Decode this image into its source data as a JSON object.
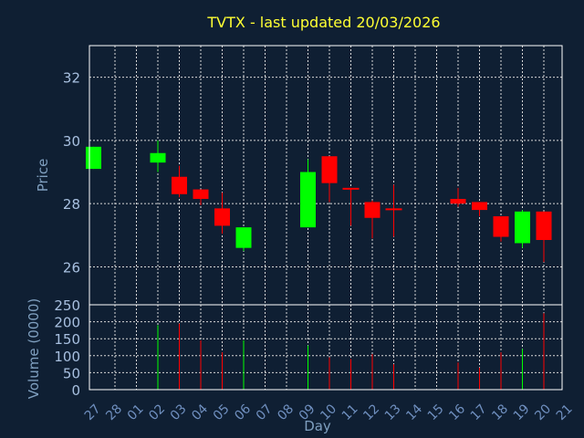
{
  "title": "TVTX - last updated 20/03/2026",
  "colors": {
    "background": "#0f1f33",
    "axis": "#ffffff",
    "grid": "#d8d8d8",
    "up": "#00ff00",
    "down": "#ff0000",
    "title": "#ffff33",
    "label": "#7f9fbf"
  },
  "chart_data": [
    {
      "type": "candlestick",
      "ylabel": "Price",
      "ylim": [
        24.8,
        33
      ],
      "yticks": [
        26,
        28,
        30,
        32
      ],
      "grid": true,
      "categories": [
        "27",
        "28",
        "01",
        "02",
        "03",
        "04",
        "05",
        "06",
        "07",
        "08",
        "09",
        "10",
        "11",
        "12",
        "13",
        "14",
        "15",
        "16",
        "17",
        "18",
        "19",
        "20",
        "21"
      ],
      "candles": [
        {
          "x": "27",
          "open": 29.1,
          "high": 29.8,
          "low": 29.1,
          "close": 29.8
        },
        {
          "x": "02",
          "open": 29.3,
          "high": 30.0,
          "low": 29.0,
          "close": 29.6
        },
        {
          "x": "03",
          "open": 28.85,
          "high": 29.2,
          "low": 28.2,
          "close": 28.3
        },
        {
          "x": "04",
          "open": 28.45,
          "high": 28.45,
          "low": 27.95,
          "close": 28.15
        },
        {
          "x": "05",
          "open": 27.85,
          "high": 28.35,
          "low": 27.05,
          "close": 27.3
        },
        {
          "x": "06",
          "open": 26.6,
          "high": 27.25,
          "low": 26.5,
          "close": 27.25
        },
        {
          "x": "09",
          "open": 27.25,
          "high": 29.4,
          "low": 27.25,
          "close": 29.0
        },
        {
          "x": "10",
          "open": 29.5,
          "high": 29.5,
          "low": 28.05,
          "close": 28.65
        },
        {
          "x": "11",
          "open": 28.5,
          "high": 28.5,
          "low": 27.3,
          "close": 28.45
        },
        {
          "x": "12",
          "open": 28.05,
          "high": 28.1,
          "low": 26.9,
          "close": 27.55
        },
        {
          "x": "13",
          "open": 27.85,
          "high": 28.6,
          "low": 26.95,
          "close": 27.8
        },
        {
          "x": "16",
          "open": 28.15,
          "high": 28.5,
          "low": 27.9,
          "close": 28.0
        },
        {
          "x": "17",
          "open": 28.05,
          "high": 28.05,
          "low": 27.6,
          "close": 27.8
        },
        {
          "x": "18",
          "open": 27.6,
          "high": 27.6,
          "low": 26.8,
          "close": 26.95
        },
        {
          "x": "19",
          "open": 26.75,
          "high": 27.8,
          "low": 26.6,
          "close": 27.75
        },
        {
          "x": "20",
          "open": 27.75,
          "high": 27.75,
          "low": 26.15,
          "close": 26.85
        }
      ]
    },
    {
      "type": "bar",
      "xlabel": "Day",
      "ylabel": "Volume (0000)",
      "ylim": [
        0,
        250
      ],
      "yticks": [
        0,
        50,
        100,
        150,
        200,
        250
      ],
      "grid": true,
      "bars": [
        {
          "x": "27",
          "value": 0,
          "direction": "up"
        },
        {
          "x": "02",
          "value": 190,
          "direction": "up"
        },
        {
          "x": "03",
          "value": 195,
          "direction": "down"
        },
        {
          "x": "04",
          "value": 145,
          "direction": "down"
        },
        {
          "x": "05",
          "value": 110,
          "direction": "down"
        },
        {
          "x": "06",
          "value": 145,
          "direction": "up"
        },
        {
          "x": "09",
          "value": 130,
          "direction": "up"
        },
        {
          "x": "10",
          "value": 95,
          "direction": "down"
        },
        {
          "x": "11",
          "value": 90,
          "direction": "down"
        },
        {
          "x": "12",
          "value": 105,
          "direction": "down"
        },
        {
          "x": "13",
          "value": 75,
          "direction": "down"
        },
        {
          "x": "16",
          "value": 80,
          "direction": "down"
        },
        {
          "x": "17",
          "value": 65,
          "direction": "down"
        },
        {
          "x": "18",
          "value": 110,
          "direction": "down"
        },
        {
          "x": "19",
          "value": 120,
          "direction": "up"
        },
        {
          "x": "20",
          "value": 225,
          "direction": "down"
        }
      ]
    }
  ]
}
